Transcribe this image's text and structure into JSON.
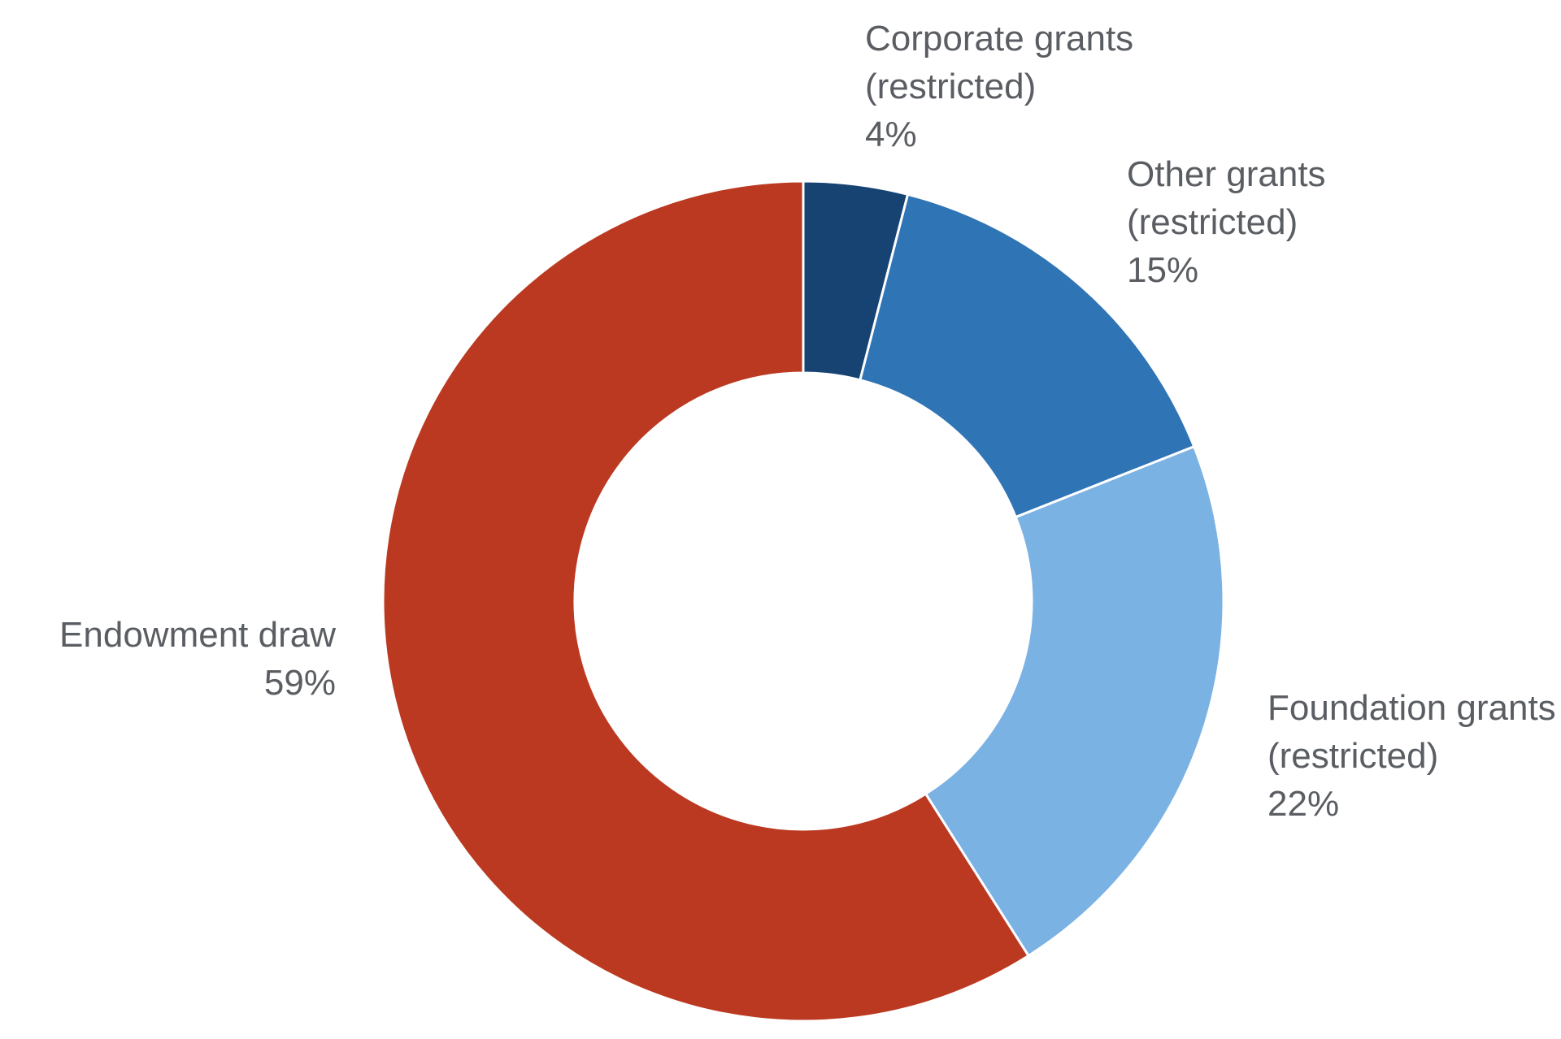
{
  "chart_data": {
    "type": "pie",
    "variant": "donut",
    "start_angle_deg": 0,
    "direction": "clockwise",
    "legend": "none",
    "slices": [
      {
        "key": "corporate",
        "label_lines": [
          "Corporate grants",
          "(restricted)"
        ],
        "value": 4,
        "value_label": "4%",
        "color": "#174373"
      },
      {
        "key": "other",
        "label_lines": [
          "Other grants",
          "(restricted)"
        ],
        "value": 15,
        "value_label": "15%",
        "color": "#2f74b5"
      },
      {
        "key": "foundation",
        "label_lines": [
          "Foundation grants",
          "(restricted)"
        ],
        "value": 22,
        "value_label": "22%",
        "color": "#7bb2e4"
      },
      {
        "key": "endowment",
        "label_lines": [
          "Endowment draw"
        ],
        "value": 59,
        "value_label": "59%",
        "color": "#bb3921"
      }
    ]
  }
}
